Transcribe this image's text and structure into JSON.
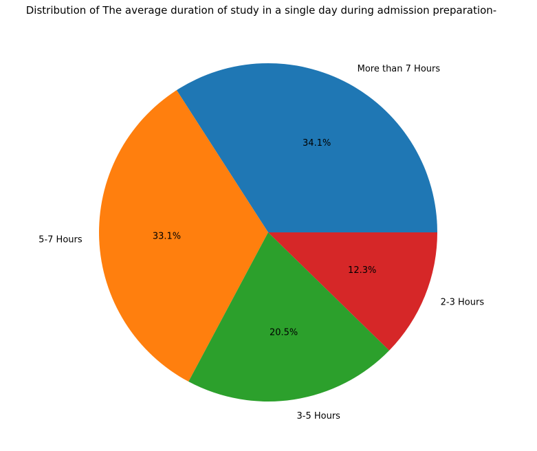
{
  "chart_data": {
    "type": "pie",
    "title": "Distribution of The average duration of study in a single day during admission preparation-",
    "start_angle_deg": 0,
    "direction": "counterclockwise",
    "slices": [
      {
        "label": "More than 7 Hours",
        "value": 34.1,
        "pct_label": "34.1%",
        "color": "#1f77b4"
      },
      {
        "label": "5-7 Hours",
        "value": 33.1,
        "pct_label": "33.1%",
        "color": "#ff7f0e"
      },
      {
        "label": "3-5 Hours",
        "value": 20.5,
        "pct_label": "20.5%",
        "color": "#2ca02c"
      },
      {
        "label": "2-3 Hours",
        "value": 12.3,
        "pct_label": "12.3%",
        "color": "#d62728"
      }
    ]
  }
}
